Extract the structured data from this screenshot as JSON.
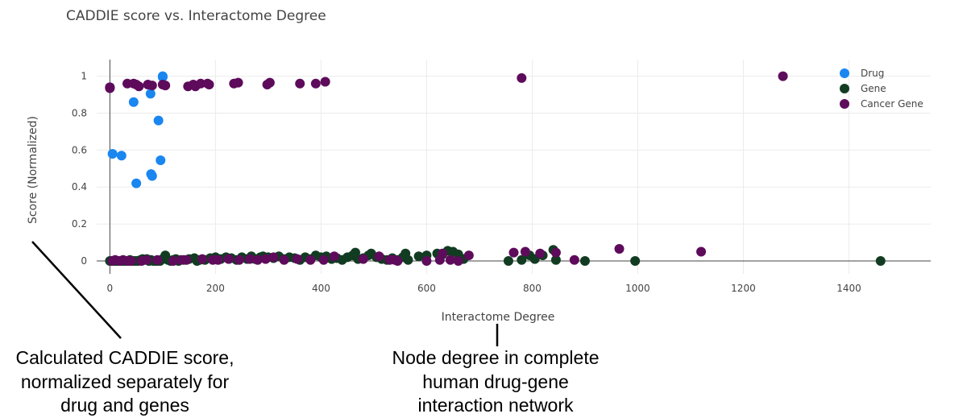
{
  "chart_data": {
    "type": "scatter",
    "title": "CADDIE score vs. Interactome Degree",
    "xlabel": "Interactome Degree",
    "ylabel": "Score (Normalized)",
    "xlim": [
      -25,
      1555
    ],
    "ylim": [
      -0.07,
      1.09
    ],
    "xticks": [
      0,
      200,
      400,
      600,
      800,
      1000,
      1200,
      1400
    ],
    "yticks": [
      0,
      0.2,
      0.4,
      0.6,
      0.8,
      1
    ],
    "ytick_labels": [
      "0",
      "0.2",
      "0.4",
      "0.6",
      "0.8",
      "1"
    ],
    "grid": true,
    "legend_position": "top-right",
    "series": [
      {
        "name": "Drug",
        "color": "#1a86f0",
        "points": [
          [
            0,
            0.94
          ],
          [
            5,
            0.58
          ],
          [
            22,
            0.57
          ],
          [
            45,
            0.86
          ],
          [
            50,
            0.42
          ],
          [
            77,
            0.905
          ],
          [
            78,
            0.47
          ],
          [
            80,
            0.46
          ],
          [
            92,
            0.76
          ],
          [
            96,
            0.545
          ],
          [
            100,
            1.0
          ],
          [
            100,
            0.995
          ]
        ]
      },
      {
        "name": "Gene",
        "color": "#123c22",
        "points": [
          [
            0,
            0
          ],
          [
            3,
            0
          ],
          [
            6,
            0
          ],
          [
            9,
            0
          ],
          [
            12,
            0
          ],
          [
            15,
            0
          ],
          [
            18,
            0
          ],
          [
            22,
            0
          ],
          [
            26,
            0
          ],
          [
            30,
            0
          ],
          [
            34,
            0
          ],
          [
            38,
            0.005
          ],
          [
            42,
            0
          ],
          [
            46,
            0
          ],
          [
            50,
            0
          ],
          [
            54,
            0
          ],
          [
            58,
            0.005
          ],
          [
            62,
            0.01
          ],
          [
            66,
            0.005
          ],
          [
            70,
            0.01
          ],
          [
            74,
            0
          ],
          [
            78,
            0.005
          ],
          [
            82,
            0
          ],
          [
            86,
            0
          ],
          [
            90,
            0
          ],
          [
            95,
            0
          ],
          [
            100,
            0.01
          ],
          [
            105,
            0.03
          ],
          [
            110,
            0.005
          ],
          [
            115,
            0
          ],
          [
            120,
            0.005
          ],
          [
            125,
            0.01
          ],
          [
            130,
            0
          ],
          [
            140,
            0.005
          ],
          [
            150,
            0.01
          ],
          [
            160,
            0.015
          ],
          [
            165,
            0
          ],
          [
            170,
            0.005
          ],
          [
            180,
            0.005
          ],
          [
            190,
            0.015
          ],
          [
            200,
            0.02
          ],
          [
            210,
            0.01
          ],
          [
            220,
            0.02
          ],
          [
            230,
            0.015
          ],
          [
            240,
            0.005
          ],
          [
            250,
            0.02
          ],
          [
            260,
            0.01
          ],
          [
            268,
            0.025
          ],
          [
            275,
            0.01
          ],
          [
            285,
            0.02
          ],
          [
            290,
            0.025
          ],
          [
            300,
            0.02
          ],
          [
            310,
            0.015
          ],
          [
            320,
            0.025
          ],
          [
            330,
            0.01
          ],
          [
            340,
            0.02
          ],
          [
            350,
            0.015
          ],
          [
            360,
            0.005
          ],
          [
            370,
            0.02
          ],
          [
            380,
            0.01
          ],
          [
            390,
            0.03
          ],
          [
            400,
            0.02
          ],
          [
            410,
            0.025
          ],
          [
            420,
            0.01
          ],
          [
            430,
            0.015
          ],
          [
            440,
            0.005
          ],
          [
            450,
            0.02
          ],
          [
            460,
            0.03
          ],
          [
            465,
            0.045
          ],
          [
            470,
            0.01
          ],
          [
            480,
            0.015
          ],
          [
            490,
            0.03
          ],
          [
            495,
            0.04
          ],
          [
            505,
            0.02
          ],
          [
            515,
            0.01
          ],
          [
            525,
            0.005
          ],
          [
            535,
            0.015
          ],
          [
            545,
            0.005
          ],
          [
            555,
            0.02
          ],
          [
            560,
            0.04
          ],
          [
            565,
            0.005
          ],
          [
            585,
            0.025
          ],
          [
            600,
            0.03
          ],
          [
            620,
            0.04
          ],
          [
            630,
            0.035
          ],
          [
            640,
            0.055
          ],
          [
            650,
            0.05
          ],
          [
            660,
            0.035
          ],
          [
            670,
            0.01
          ],
          [
            755,
            0.0
          ],
          [
            780,
            0.005
          ],
          [
            795,
            0.03
          ],
          [
            805,
            0.01
          ],
          [
            820,
            0.03
          ],
          [
            840,
            0.06
          ],
          [
            845,
            0.005
          ],
          [
            900,
            0.0
          ],
          [
            995,
            0.0
          ],
          [
            1460,
            0.0
          ]
        ]
      },
      {
        "name": "Cancer Gene",
        "color": "#5e0b5c",
        "points": [
          [
            0,
            0.94
          ],
          [
            0,
            0.935
          ],
          [
            33,
            0.96
          ],
          [
            45,
            0.96
          ],
          [
            50,
            0.955
          ],
          [
            55,
            0.945
          ],
          [
            72,
            0.955
          ],
          [
            80,
            0.95
          ],
          [
            100,
            0.955
          ],
          [
            105,
            0.95
          ],
          [
            148,
            0.945
          ],
          [
            158,
            0.955
          ],
          [
            162,
            0.945
          ],
          [
            172,
            0.96
          ],
          [
            185,
            0.96
          ],
          [
            188,
            0.955
          ],
          [
            235,
            0.96
          ],
          [
            243,
            0.965
          ],
          [
            298,
            0.955
          ],
          [
            303,
            0.965
          ],
          [
            360,
            0.96
          ],
          [
            390,
            0.96
          ],
          [
            408,
            0.97
          ],
          [
            780,
            0.99
          ],
          [
            1275,
            1.0
          ],
          [
            5,
            0.0
          ],
          [
            10,
            0.005
          ],
          [
            20,
            0
          ],
          [
            25,
            0.005
          ],
          [
            35,
            0
          ],
          [
            40,
            0
          ],
          [
            60,
            0
          ],
          [
            70,
            0.005
          ],
          [
            90,
            0.005
          ],
          [
            120,
            0
          ],
          [
            135,
            0.005
          ],
          [
            145,
            0.005
          ],
          [
            175,
            0.01
          ],
          [
            195,
            0.005
          ],
          [
            205,
            0.005
          ],
          [
            225,
            0.01
          ],
          [
            245,
            0.005
          ],
          [
            265,
            0.01
          ],
          [
            280,
            0.005
          ],
          [
            295,
            0.01
          ],
          [
            310,
            0.02
          ],
          [
            330,
            0.005
          ],
          [
            355,
            0.01
          ],
          [
            380,
            0.005
          ],
          [
            405,
            0.005
          ],
          [
            425,
            0.025
          ],
          [
            480,
            0.01
          ],
          [
            510,
            0.025
          ],
          [
            530,
            0.005
          ],
          [
            540,
            0.005
          ],
          [
            545,
            0.0
          ],
          [
            600,
            0.0
          ],
          [
            625,
            0.005
          ],
          [
            630,
            0.04
          ],
          [
            645,
            0.005
          ],
          [
            660,
            0.0
          ],
          [
            680,
            0.03
          ],
          [
            765,
            0.045
          ],
          [
            787,
            0.05
          ],
          [
            815,
            0.04
          ],
          [
            845,
            0.045
          ],
          [
            880,
            0.005
          ],
          [
            965,
            0.065
          ],
          [
            1120,
            0.05
          ]
        ]
      }
    ]
  },
  "annotations": {
    "left_note": [
      "Calculated CADDIE score,",
      "normalized separately for",
      "drug and genes"
    ],
    "right_note": [
      "Node degree in complete",
      "human drug-gene",
      "interaction network"
    ]
  }
}
